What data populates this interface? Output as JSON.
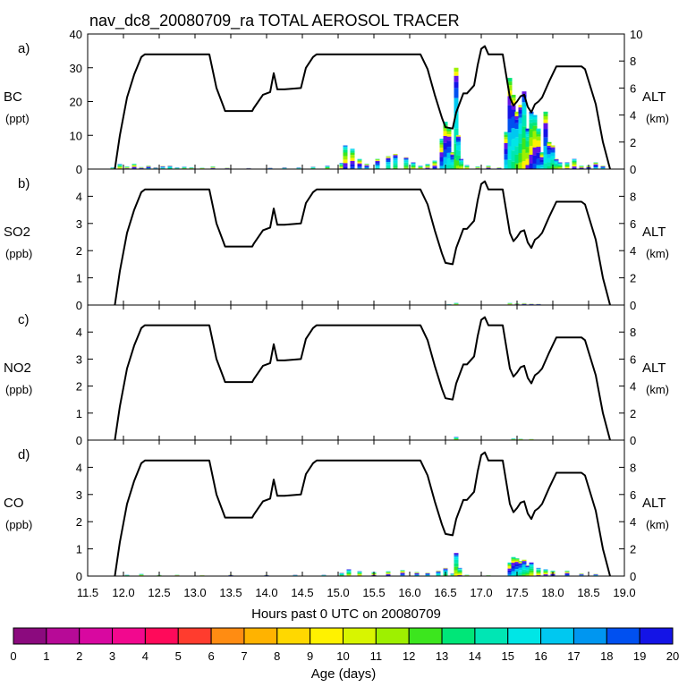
{
  "chart_data": {
    "type": "line",
    "title": "nav_dc8_20080709_ra TOTAL AEROSOL TRACER",
    "xlabel": "Hours past 0 UTC on 20080709",
    "xlim": [
      11.5,
      19.0
    ],
    "x_ticks": [
      "11.5",
      "12.0",
      "12.5",
      "13.0",
      "13.5",
      "14.0",
      "14.5",
      "15.0",
      "15.5",
      "16.0",
      "16.5",
      "17.0",
      "17.5",
      "18.0",
      "18.5",
      "19.0"
    ],
    "altitude_axis": {
      "label": "ALT",
      "unit": "(km)",
      "ylim": [
        0,
        10
      ],
      "ticks_a": [
        "0",
        "2",
        "4",
        "6",
        "8",
        "10"
      ],
      "ticks_bcd": [
        "0",
        "2",
        "4",
        "6",
        "8"
      ]
    },
    "altitude_profile": {
      "x": [
        11.88,
        11.95,
        12.05,
        12.15,
        12.25,
        12.3,
        13.2,
        13.3,
        13.4,
        13.42,
        13.5,
        13.8,
        13.82,
        13.95,
        14.05,
        14.1,
        14.15,
        14.2,
        14.25,
        14.48,
        14.55,
        14.65,
        14.7,
        15.0,
        16.15,
        16.25,
        16.35,
        16.45,
        16.5,
        16.6,
        16.65,
        16.75,
        16.8,
        16.9,
        16.95,
        17.0,
        17.05,
        17.1,
        17.3,
        17.4,
        17.45,
        17.5,
        17.55,
        17.6,
        17.65,
        17.7,
        17.75,
        17.8,
        17.85,
        17.95,
        18.05,
        18.4,
        18.45,
        18.6,
        18.7,
        18.8
      ],
      "alt_km": [
        0,
        2.5,
        5.3,
        7.0,
        8.3,
        8.5,
        8.5,
        6.0,
        4.6,
        4.3,
        4.3,
        4.3,
        4.5,
        5.5,
        5.7,
        7.1,
        5.9,
        5.9,
        5.9,
        6.0,
        7.5,
        8.3,
        8.5,
        8.5,
        8.5,
        7.4,
        5.5,
        3.8,
        3.1,
        3.0,
        4.2,
        5.6,
        5.6,
        6.2,
        7.7,
        8.9,
        9.1,
        8.5,
        8.5,
        5.3,
        4.7,
        5.0,
        5.4,
        5.5,
        4.6,
        4.2,
        4.8,
        5.0,
        5.3,
        6.5,
        7.6,
        7.6,
        7.4,
        4.8,
        2.0,
        0
      ]
    },
    "panels": [
      {
        "tag": "a)",
        "species": "BC",
        "unit": "(ppt)",
        "ylim": [
          0,
          40
        ],
        "y_ticks": [
          "0",
          "10",
          "20",
          "30",
          "40"
        ],
        "series": [
          {
            "name": "BC",
            "x": [
              11.85,
              11.95,
              12.05,
              12.15,
              12.25,
              12.35,
              12.45,
              12.55,
              12.65,
              12.75,
              12.85,
              12.95,
              13.1,
              13.25,
              13.45,
              13.75,
              14.05,
              14.25,
              14.45,
              14.65,
              14.85,
              15.05,
              15.1,
              15.2,
              15.3,
              15.4,
              15.55,
              15.7,
              15.8,
              15.95,
              16.05,
              16.15,
              16.25,
              16.35,
              16.45,
              16.5,
              16.55,
              16.6,
              16.65,
              16.68,
              16.72,
              16.8,
              16.95,
              17.1,
              17.25,
              17.35,
              17.4,
              17.45,
              17.5,
              17.55,
              17.6,
              17.65,
              17.7,
              17.75,
              17.8,
              17.85,
              17.9,
              17.95,
              18.0,
              18.05,
              18.1,
              18.2,
              18.3,
              18.4,
              18.5,
              18.6,
              18.7
            ],
            "values": [
              0.5,
              1.5,
              0.8,
              1.6,
              0.6,
              1.0,
              0.5,
              0.9,
              1.0,
              0.5,
              0.7,
              0.5,
              0.4,
              0.8,
              0.4,
              0.3,
              0.4,
              0.5,
              0.5,
              0.7,
              1.0,
              1.8,
              7,
              6,
              3,
              1.6,
              3,
              3.8,
              4.5,
              3.5,
              2,
              1,
              1.5,
              2.5,
              9,
              14,
              12,
              5,
              30,
              10,
              3,
              1.2,
              0.8,
              1,
              0.5,
              11,
              27,
              22,
              17,
              19,
              23,
              12,
              17,
              16,
              12,
              5,
              17,
              8,
              7,
              3,
              2,
              2,
              3,
              1,
              1,
              2,
              1
            ]
          }
        ]
      },
      {
        "tag": "b)",
        "species": "SO2",
        "unit": "(ppb)",
        "ylim": [
          0,
          5
        ],
        "y_ticks": [
          "0",
          "1",
          "2",
          "3",
          "4"
        ],
        "series": [
          {
            "name": "SO2",
            "x": [
              16.55,
              16.65,
              17.4,
              17.5,
              17.6,
              17.7,
              17.8
            ],
            "values": [
              0.03,
              0.08,
              0.08,
              0.06,
              0.07,
              0.05,
              0.04
            ]
          }
        ]
      },
      {
        "tag": "c)",
        "species": "NO2",
        "unit": "(ppb)",
        "ylim": [
          0,
          5
        ],
        "y_ticks": [
          "0",
          "1",
          "2",
          "3",
          "4"
        ],
        "series": [
          {
            "name": "NO2",
            "x": [
              16.65,
              17.45,
              17.55,
              17.7
            ],
            "values": [
              0.12,
              0.06,
              0.05,
              0.04
            ]
          }
        ]
      },
      {
        "tag": "d)",
        "species": "CO",
        "unit": "(ppb)",
        "ylim": [
          0,
          5
        ],
        "y_ticks": [
          "0",
          "1",
          "2",
          "3",
          "4"
        ],
        "series": [
          {
            "name": "CO",
            "x": [
              12.05,
              12.25,
              12.5,
              12.75,
              13.1,
              13.5,
              14.0,
              14.4,
              14.8,
              15.05,
              15.15,
              15.3,
              15.5,
              15.7,
              15.9,
              16.1,
              16.25,
              16.4,
              16.5,
              16.6,
              16.65,
              16.7,
              16.8,
              17.1,
              17.4,
              17.45,
              17.5,
              17.55,
              17.6,
              17.65,
              17.7,
              17.8,
              17.9,
              18.0,
              18.2,
              18.4,
              18.6
            ],
            "values": [
              0.05,
              0.08,
              0.04,
              0.05,
              0.03,
              0.05,
              0.04,
              0.05,
              0.05,
              0.12,
              0.25,
              0.18,
              0.15,
              0.18,
              0.22,
              0.15,
              0.12,
              0.2,
              0.3,
              0.1,
              0.85,
              0.3,
              0.05,
              0.03,
              0.5,
              0.7,
              0.65,
              0.55,
              0.6,
              0.4,
              0.5,
              0.3,
              0.25,
              0.2,
              0.2,
              0.1,
              0.08
            ]
          }
        ]
      }
    ],
    "colorbar": {
      "label": "Age (days)",
      "ticks": [
        "0",
        "1",
        "2",
        "3",
        "4",
        "5",
        "6",
        "7",
        "8",
        "9",
        "10",
        "11",
        "12",
        "13",
        "14",
        "15",
        "16",
        "17",
        "18",
        "19",
        "20"
      ],
      "colors": [
        "#8b0a7e",
        "#b70a97",
        "#d808a0",
        "#f2088e",
        "#ff0a5a",
        "#ff3c2e",
        "#ff8c12",
        "#ffb300",
        "#ffd800",
        "#fff200",
        "#d8f500",
        "#9ef000",
        "#3ce61e",
        "#00e678",
        "#00e6b4",
        "#00e6e6",
        "#00c8f0",
        "#0096f0",
        "#0050f0",
        "#1414e6",
        "#6414e6"
      ]
    }
  }
}
